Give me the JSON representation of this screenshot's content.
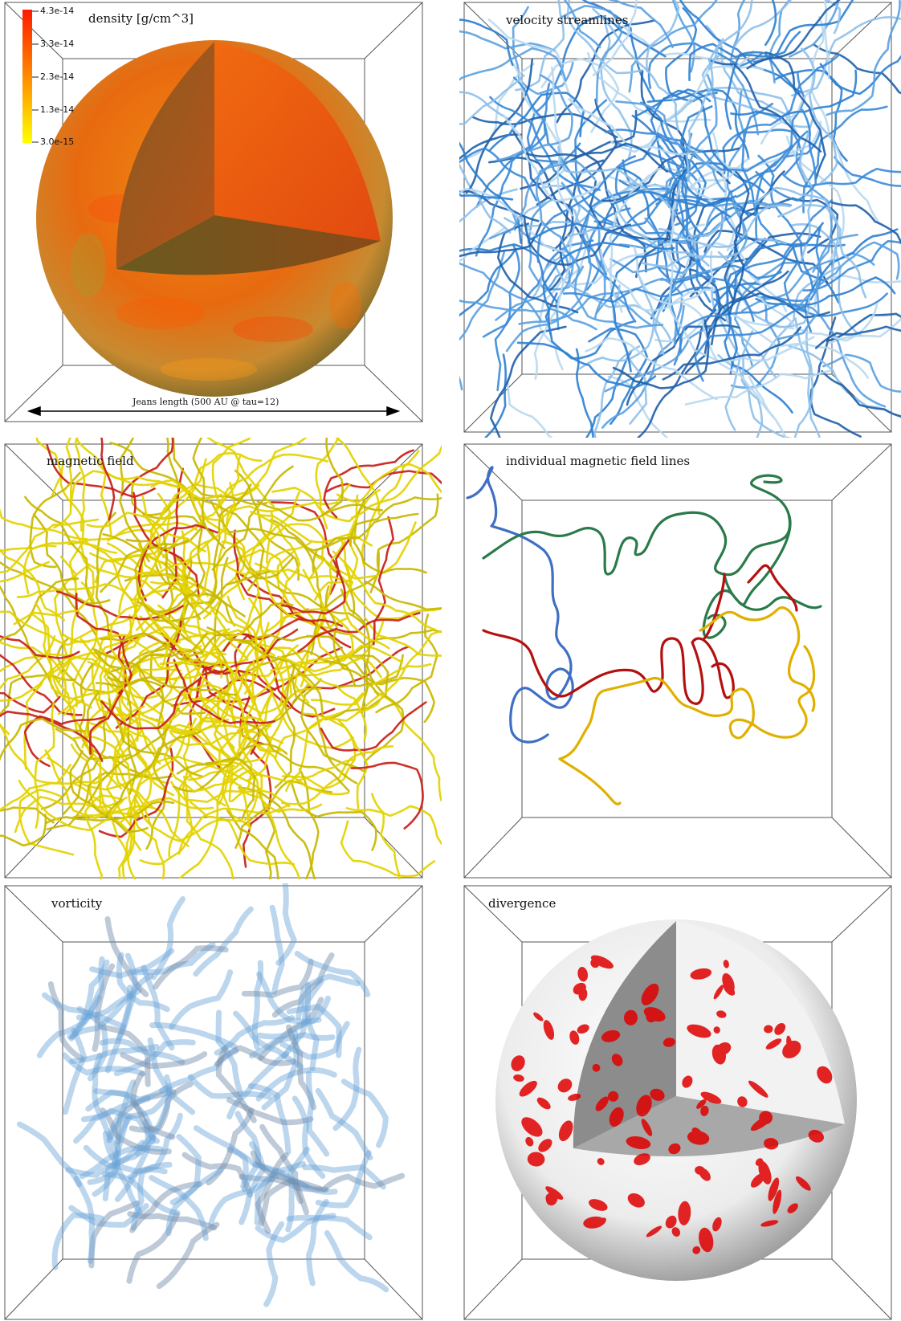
{
  "panels": {
    "density": {
      "title": "density [g/cm^3]"
    },
    "velocity": {
      "title": "velocity streamlines"
    },
    "magnetic": {
      "title": "magnetic field"
    },
    "individual": {
      "title": "individual magnetic field lines"
    },
    "vorticity": {
      "title": "vorticity"
    },
    "divergence": {
      "title": "divergence"
    }
  },
  "colorbar": {
    "ticks": [
      "4.3e-14",
      "3.3e-14",
      "2.3e-14",
      "1.3e-14",
      "3.0e-15"
    ],
    "colors": {
      "top": "#ff1a00",
      "bottom": "#ffff00"
    }
  },
  "scale_bar": {
    "label": "Jeans length (500 AU @ tau=12)"
  },
  "colors": {
    "velocity": "#2e7fd0",
    "magnetic_main": "#e3d200",
    "magnetic_accent": "#c8201a",
    "line_blue": "#3f6fc4",
    "line_green": "#2a7a4a",
    "line_red": "#b51010",
    "line_gold": "#e0b000",
    "vorticity": "#5a9ad0",
    "divergence": "#e00000"
  }
}
